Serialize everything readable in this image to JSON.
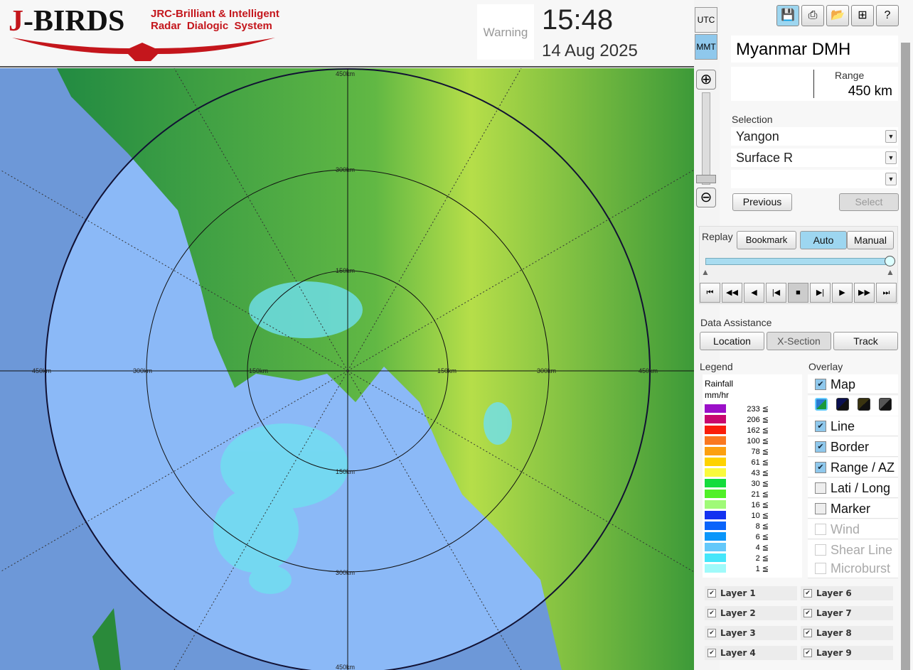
{
  "header": {
    "logo_main": "J-BIRDS",
    "logo_sub": "JRC-Brilliant & Intelligent\nRadar  Dialogic  System",
    "warning": "Warning",
    "time": "15:48",
    "date": "14 Aug 2025",
    "tz_utc": "UTC",
    "tz_mmt": "MMT",
    "tz_active": "MMT"
  },
  "toolbar": {
    "icons": [
      "save-icon",
      "print-icon",
      "open-folder-icon",
      "add-window-icon",
      "help-icon"
    ]
  },
  "station": "Myanmar DMH",
  "range": {
    "label": "Range",
    "value": "450 km"
  },
  "selection": {
    "label": "Selection",
    "site": "Yangon",
    "product": "Surface R",
    "third": "",
    "previous": "Previous",
    "select": "Select"
  },
  "replay": {
    "label": "Replay",
    "bookmark": "Bookmark",
    "auto": "Auto",
    "manual": "Manual",
    "mode": "Auto",
    "position": 1.0,
    "controls": [
      "⏮",
      "◀◀",
      "◀",
      "|◀",
      "■",
      "▶|",
      "▶",
      "▶▶",
      "⏭"
    ]
  },
  "data_assistance": {
    "label": "Data Assistance",
    "location": "Location",
    "xsection": "X-Section",
    "track": "Track"
  },
  "legend": {
    "label": "Legend",
    "title": "Rainfall",
    "unit": "mm/hr",
    "items": [
      {
        "v": "233 ≦",
        "c": "#9b0fc8"
      },
      {
        "v": "206 ≦",
        "c": "#c8086e"
      },
      {
        "v": "162 ≦",
        "c": "#fa1e0a"
      },
      {
        "v": "100 ≦",
        "c": "#fa7820"
      },
      {
        "v": "78 ≦",
        "c": "#fca010"
      },
      {
        "v": "61 ≦",
        "c": "#fed200"
      },
      {
        "v": "43 ≦",
        "c": "#fafa3c"
      },
      {
        "v": "30 ≦",
        "c": "#14dc3c"
      },
      {
        "v": "21 ≦",
        "c": "#50f028"
      },
      {
        "v": "16 ≦",
        "c": "#a0fa78"
      },
      {
        "v": "10 ≦",
        "c": "#1432f0"
      },
      {
        "v": "8 ≦",
        "c": "#0a64fa"
      },
      {
        "v": "6 ≦",
        "c": "#0a96fa"
      },
      {
        "v": "4 ≦",
        "c": "#64c8fa"
      },
      {
        "v": "2 ≦",
        "c": "#46e6fa"
      },
      {
        "v": "1 ≦",
        "c": "#a0fafa"
      }
    ]
  },
  "overlay": {
    "label": "Overlay",
    "items": [
      {
        "label": "Map",
        "checked": true,
        "enabled": true
      },
      {
        "label": "Line",
        "checked": true,
        "enabled": true
      },
      {
        "label": "Border",
        "checked": true,
        "enabled": true
      },
      {
        "label": "Range / AZ",
        "checked": true,
        "enabled": true
      },
      {
        "label": "Lati / Long",
        "checked": false,
        "enabled": true
      },
      {
        "label": "Marker",
        "checked": false,
        "enabled": true
      },
      {
        "label": "Wind",
        "checked": false,
        "enabled": false
      },
      {
        "label": "Shear Line",
        "checked": false,
        "enabled": false
      },
      {
        "label": "Microburst",
        "checked": false,
        "enabled": false
      }
    ],
    "map_styles": [
      "#2a7ad0",
      "#0a1050",
      "#3a3410",
      "#555555"
    ]
  },
  "layers": [
    "Layer 1",
    "Layer 2",
    "Layer 3",
    "Layer 4",
    "Layer 6",
    "Layer 7",
    "Layer 8",
    "Layer 9"
  ],
  "ranges": {
    "r150": "150km",
    "r300": "300km",
    "r450": "450km"
  }
}
